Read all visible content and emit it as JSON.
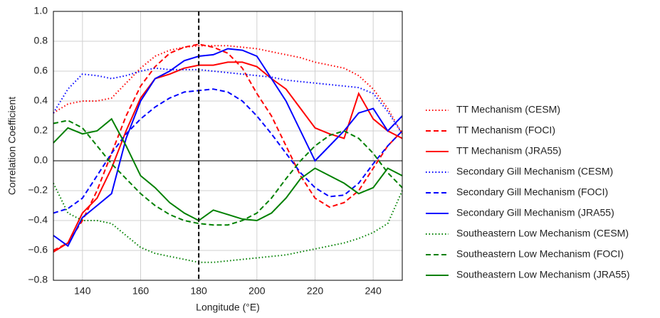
{
  "chart_data": {
    "type": "line",
    "xlabel": "Longitude (°E)",
    "ylabel": "Correlation Coefficient",
    "x": [
      130,
      135,
      140,
      145,
      150,
      155,
      160,
      165,
      170,
      175,
      180,
      185,
      190,
      195,
      200,
      205,
      210,
      215,
      220,
      225,
      230,
      235,
      240,
      245,
      250
    ],
    "xlim": [
      130,
      250
    ],
    "xticks": [
      140,
      160,
      180,
      200,
      220,
      240
    ],
    "ylim": [
      -0.8,
      1.0
    ],
    "yticks": [
      {
        "value": -0.8,
        "label": "−0.8"
      },
      {
        "value": -0.6,
        "label": "−0.6"
      },
      {
        "value": -0.4,
        "label": "−0.4"
      },
      {
        "value": -0.2,
        "label": "−0.2"
      },
      {
        "value": 0,
        "label": "0.0"
      },
      0.2,
      0.4,
      0.6,
      0.8,
      {
        "value": 1,
        "label": "1.0"
      }
    ],
    "grid": true,
    "vline": 180,
    "hline": 0,
    "legend": "right",
    "series": [
      {
        "name": "TT Mechanism (CESM)",
        "color": "#ff0000",
        "linestyle": "dotted",
        "values": [
          0.32,
          0.38,
          0.4,
          0.4,
          0.42,
          0.52,
          0.62,
          0.7,
          0.74,
          0.76,
          0.77,
          0.77,
          0.77,
          0.76,
          0.75,
          0.73,
          0.71,
          0.69,
          0.66,
          0.64,
          0.62,
          0.57,
          0.48,
          0.35,
          0.18
        ]
      },
      {
        "name": "TT Mechanism (FOCI)",
        "color": "#ff0000",
        "linestyle": "dashed",
        "values": [
          -0.6,
          -0.55,
          -0.4,
          -0.2,
          0.05,
          0.3,
          0.5,
          0.63,
          0.72,
          0.76,
          0.78,
          0.76,
          0.72,
          0.62,
          0.45,
          0.3,
          0.1,
          -0.1,
          -0.25,
          -0.31,
          -0.28,
          -0.2,
          -0.05,
          0.1,
          0.2
        ]
      },
      {
        "name": "TT Mechanism (JRA55)",
        "color": "#ff0000",
        "linestyle": "solid",
        "values": [
          -0.61,
          -0.55,
          -0.35,
          -0.25,
          -0.05,
          0.2,
          0.42,
          0.55,
          0.58,
          0.62,
          0.64,
          0.64,
          0.66,
          0.66,
          0.63,
          0.55,
          0.48,
          0.35,
          0.22,
          0.18,
          0.15,
          0.45,
          0.28,
          0.2,
          0.15
        ]
      },
      {
        "name": "Secondary Gill Mechanism (CESM)",
        "color": "#0000ff",
        "linestyle": "dotted",
        "values": [
          0.32,
          0.48,
          0.58,
          0.57,
          0.55,
          0.57,
          0.6,
          0.62,
          0.61,
          0.61,
          0.61,
          0.6,
          0.59,
          0.58,
          0.57,
          0.56,
          0.54,
          0.53,
          0.52,
          0.51,
          0.5,
          0.49,
          0.45,
          0.33,
          0.18
        ]
      },
      {
        "name": "Secondary Gill Mechanism (FOCI)",
        "color": "#0000ff",
        "linestyle": "dashed",
        "values": [
          -0.35,
          -0.32,
          -0.25,
          -0.1,
          0.05,
          0.18,
          0.28,
          0.36,
          0.42,
          0.46,
          0.47,
          0.48,
          0.46,
          0.4,
          0.3,
          0.18,
          0.05,
          -0.08,
          -0.18,
          -0.24,
          -0.23,
          -0.15,
          -0.02,
          0.1,
          0.2
        ]
      },
      {
        "name": "Secondary Gill Mechanism (JRA55)",
        "color": "#0000ff",
        "linestyle": "solid",
        "values": [
          -0.5,
          -0.57,
          -0.38,
          -0.3,
          -0.22,
          0.15,
          0.4,
          0.55,
          0.6,
          0.67,
          0.7,
          0.71,
          0.75,
          0.74,
          0.7,
          0.55,
          0.4,
          0.2,
          0.0,
          0.1,
          0.2,
          0.32,
          0.35,
          0.2,
          0.3
        ]
      },
      {
        "name": "Southeastern Low Mechanism (CESM)",
        "color": "#008000",
        "linestyle": "dotted",
        "values": [
          -0.15,
          -0.35,
          -0.4,
          -0.4,
          -0.42,
          -0.5,
          -0.58,
          -0.62,
          -0.64,
          -0.66,
          -0.68,
          -0.68,
          -0.67,
          -0.66,
          -0.65,
          -0.64,
          -0.63,
          -0.61,
          -0.59,
          -0.57,
          -0.55,
          -0.52,
          -0.48,
          -0.42,
          -0.2
        ]
      },
      {
        "name": "Southeastern Low Mechanism (FOCI)",
        "color": "#008000",
        "linestyle": "dashed",
        "values": [
          0.25,
          0.27,
          0.22,
          0.1,
          -0.02,
          -0.12,
          -0.22,
          -0.3,
          -0.36,
          -0.4,
          -0.42,
          -0.43,
          -0.43,
          -0.4,
          -0.35,
          -0.25,
          -0.12,
          0.0,
          0.1,
          0.17,
          0.2,
          0.15,
          0.05,
          -0.08,
          -0.18
        ]
      },
      {
        "name": "Southeastern Low Mechanism (JRA55)",
        "color": "#008000",
        "linestyle": "solid",
        "values": [
          0.12,
          0.22,
          0.18,
          0.2,
          0.28,
          0.1,
          -0.1,
          -0.18,
          -0.28,
          -0.35,
          -0.4,
          -0.33,
          -0.36,
          -0.39,
          -0.4,
          -0.35,
          -0.25,
          -0.12,
          -0.05,
          -0.1,
          -0.15,
          -0.22,
          -0.18,
          -0.05,
          -0.1
        ]
      }
    ]
  }
}
